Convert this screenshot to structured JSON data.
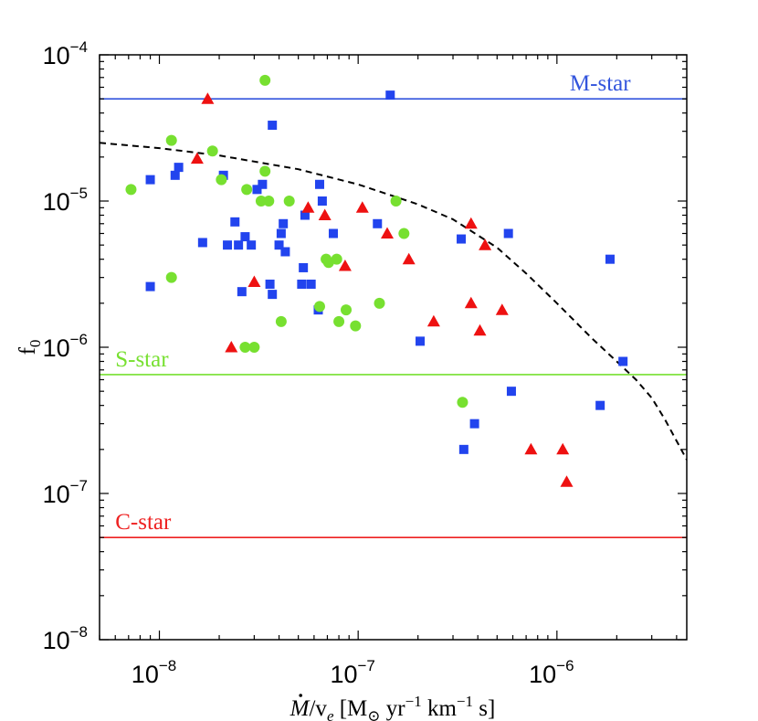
{
  "chart_data": {
    "type": "scatter",
    "xscale": "log",
    "yscale": "log",
    "xlim": [
      5e-09,
      4.5e-06
    ],
    "ylim": [
      1e-08,
      0.0001
    ],
    "x_ticks": [
      {
        "value": 1e-08,
        "base": "10",
        "exp": "−8"
      },
      {
        "value": 1e-07,
        "base": "10",
        "exp": "−7"
      },
      {
        "value": 1e-06,
        "base": "10",
        "exp": "−6"
      }
    ],
    "y_ticks": [
      {
        "value": 0.0001,
        "base": "10",
        "exp": "−4"
      },
      {
        "value": 1e-05,
        "base": "10",
        "exp": "−5"
      },
      {
        "value": 1e-06,
        "base": "10",
        "exp": "−6"
      },
      {
        "value": 1e-07,
        "base": "10",
        "exp": "−7"
      },
      {
        "value": 1e-08,
        "base": "10",
        "exp": "−8"
      }
    ],
    "xlabel": {
      "m": "M",
      "over": "/v",
      "e": "e",
      "open": " [M",
      "sun": "⊙",
      "yr": " yr",
      "yr_exp": "−1",
      "km": " km",
      "km_exp": "−1",
      "s": " s]"
    },
    "ylabel": {
      "f": "f",
      "sub": "0"
    },
    "reference_lines": [
      {
        "name": "M-star",
        "label": "M-star",
        "y": 5e-05,
        "color": "#3355dd",
        "label_x": 2.35e-06,
        "label_align": "end"
      },
      {
        "name": "S-star",
        "label": "S-star",
        "y": 6.5e-07,
        "color": "#77e030",
        "label_x": 6e-09,
        "label_align": "start"
      },
      {
        "name": "C-star",
        "label": "C-star",
        "y": 5e-08,
        "color": "#ee2222",
        "label_x": 6e-09,
        "label_align": "start"
      }
    ],
    "curve": {
      "name": "dashed-limit",
      "style": "dashed",
      "color": "#000000",
      "points": [
        [
          5e-09,
          2.5e-05
        ],
        [
          1e-08,
          2.3e-05
        ],
        [
          2e-08,
          2.05e-05
        ],
        [
          5e-08,
          1.65e-05
        ],
        [
          1e-07,
          1.3e-05
        ],
        [
          2e-07,
          9.5e-06
        ],
        [
          3e-07,
          7.5e-06
        ],
        [
          5e-07,
          4.8e-06
        ],
        [
          7e-07,
          3.2e-06
        ],
        [
          1e-06,
          2e-06
        ],
        [
          1.5e-06,
          1.15e-06
        ],
        [
          2e-06,
          8e-07
        ],
        [
          2.5e-06,
          6e-07
        ],
        [
          3e-06,
          4.5e-07
        ],
        [
          3.5e-06,
          3.2e-07
        ],
        [
          4.5e-06,
          1.7e-07
        ]
      ]
    },
    "series": [
      {
        "name": "M-star",
        "marker": "square",
        "color": "#2244ee",
        "points": [
          [
            9e-09,
            1.4e-05
          ],
          [
            1.2e-08,
            1.5e-05
          ],
          [
            1.25e-08,
            1.7e-05
          ],
          [
            9e-09,
            2.6e-06
          ],
          [
            1.65e-08,
            5.2e-06
          ],
          [
            2.1e-08,
            1.5e-05
          ],
          [
            2.2e-08,
            5e-06
          ],
          [
            2.4e-08,
            7.2e-06
          ],
          [
            2.5e-08,
            5e-06
          ],
          [
            2.7e-08,
            5.7e-06
          ],
          [
            2.6e-08,
            2.4e-06
          ],
          [
            2.9e-08,
            5e-06
          ],
          [
            3.1e-08,
            1.2e-05
          ],
          [
            3.3e-08,
            1.3e-05
          ],
          [
            3.6e-08,
            2.7e-06
          ],
          [
            3.7e-08,
            2.3e-06
          ],
          [
            3.7e-08,
            3.3e-05
          ],
          [
            4e-08,
            5e-06
          ],
          [
            4.1e-08,
            6e-06
          ],
          [
            4.2e-08,
            7e-06
          ],
          [
            4.3e-08,
            4.5e-06
          ],
          [
            5.2e-08,
            2.7e-06
          ],
          [
            5.3e-08,
            3.5e-06
          ],
          [
            5.4e-08,
            8e-06
          ],
          [
            5.8e-08,
            2.7e-06
          ],
          [
            6.3e-08,
            1.8e-06
          ],
          [
            6.4e-08,
            1.3e-05
          ],
          [
            6.6e-08,
            1e-05
          ],
          [
            7.5e-08,
            6e-06
          ],
          [
            1.45e-07,
            5.3e-05
          ],
          [
            1.25e-07,
            7e-06
          ],
          [
            2.05e-07,
            1.1e-06
          ],
          [
            3.3e-07,
            5.5e-06
          ],
          [
            3.4e-07,
            2e-07
          ],
          [
            3.85e-07,
            3e-07
          ],
          [
            5.7e-07,
            6e-06
          ],
          [
            5.9e-07,
            5e-07
          ],
          [
            1.65e-06,
            4e-07
          ],
          [
            1.85e-06,
            4e-06
          ],
          [
            2.15e-06,
            8e-07
          ]
        ]
      },
      {
        "name": "S-star",
        "marker": "circle",
        "color": "#77e030",
        "points": [
          [
            7.2e-09,
            1.2e-05
          ],
          [
            1.15e-08,
            2.6e-05
          ],
          [
            1.15e-08,
            3e-06
          ],
          [
            1.85e-08,
            2.2e-05
          ],
          [
            2.05e-08,
            1.4e-05
          ],
          [
            2.75e-08,
            1.2e-05
          ],
          [
            2.7e-08,
            1e-06
          ],
          [
            3e-08,
            1e-06
          ],
          [
            3.25e-08,
            1e-05
          ],
          [
            3.4e-08,
            1.6e-05
          ],
          [
            3.4e-08,
            6.7e-05
          ],
          [
            3.55e-08,
            1e-05
          ],
          [
            4.1e-08,
            1.5e-06
          ],
          [
            4.5e-08,
            1e-05
          ],
          [
            6.4e-08,
            1.9e-06
          ],
          [
            6.9e-08,
            4e-06
          ],
          [
            7.1e-08,
            3.8e-06
          ],
          [
            7.8e-08,
            4e-06
          ],
          [
            8e-08,
            1.5e-06
          ],
          [
            8.7e-08,
            1.8e-06
          ],
          [
            9.7e-08,
            1.4e-06
          ],
          [
            1.28e-07,
            2e-06
          ],
          [
            1.55e-07,
            1e-05
          ],
          [
            1.7e-07,
            6e-06
          ],
          [
            3.35e-07,
            4.2e-07
          ]
        ]
      },
      {
        "name": "C-star",
        "marker": "triangle",
        "color": "#ee1111",
        "points": [
          [
            1.75e-08,
            5e-05
          ],
          [
            1.55e-08,
            1.95e-05
          ],
          [
            2.3e-08,
            1e-06
          ],
          [
            3e-08,
            2.8e-06
          ],
          [
            5.6e-08,
            9e-06
          ],
          [
            6.8e-08,
            8e-06
          ],
          [
            8.6e-08,
            3.6e-06
          ],
          [
            1.05e-07,
            9e-06
          ],
          [
            1.4e-07,
            6e-06
          ],
          [
            1.8e-07,
            4e-06
          ],
          [
            2.4e-07,
            1.5e-06
          ],
          [
            3.7e-07,
            7e-06
          ],
          [
            3.7e-07,
            2e-06
          ],
          [
            4.1e-07,
            1.3e-06
          ],
          [
            4.35e-07,
            5e-06
          ],
          [
            5.3e-07,
            1.8e-06
          ],
          [
            7.4e-07,
            2e-07
          ],
          [
            1.07e-06,
            2e-07
          ],
          [
            1.12e-06,
            1.2e-07
          ]
        ]
      }
    ]
  }
}
